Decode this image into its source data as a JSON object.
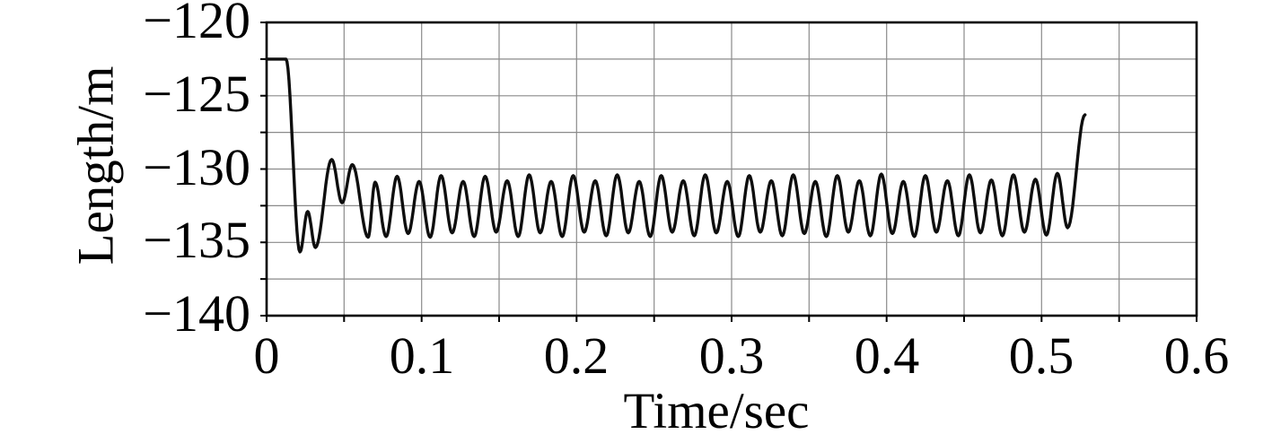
{
  "figure": {
    "background": "#ffffff",
    "line_color": "#0e0e0e",
    "grid_color": "#8a8a8a",
    "axis_color": "#000000"
  },
  "chart_data": {
    "type": "line",
    "title": "",
    "xlabel": "Time/sec",
    "ylabel": "Length/m",
    "xlim": [
      0,
      0.6
    ],
    "ylim": [
      -140,
      -120
    ],
    "x_minor_step": 0.05,
    "y_minor_step": 2.5,
    "grid": "minor-both",
    "legend": "none",
    "x_major_ticks": [
      0,
      0.1,
      0.2,
      0.3,
      0.4,
      0.5,
      0.6
    ],
    "x_tick_labels": [
      "0",
      "0.1",
      "0.2",
      "0.3",
      "0.4",
      "0.5",
      "0.6"
    ],
    "y_major_ticks": [
      -120,
      -125,
      -130,
      -135,
      -140
    ],
    "y_tick_labels": [
      "−120",
      "−125",
      "−130",
      "−135",
      "−140"
    ],
    "series": [
      {
        "name": "length",
        "points": [
          [
            0.0,
            -122.5
          ],
          [
            0.0125,
            -122.5
          ],
          [
            0.0215,
            -135.65
          ],
          [
            0.0265,
            -132.9
          ],
          [
            0.0315,
            -135.35
          ],
          [
            0.042,
            -129.35
          ],
          [
            0.0487,
            -132.3
          ],
          [
            0.0553,
            -129.7
          ],
          [
            0.0655,
            -134.65
          ],
          [
            0.07,
            -130.9
          ],
          [
            0.0771,
            -134.6
          ],
          [
            0.0842,
            -130.5
          ],
          [
            0.0913,
            -134.4
          ],
          [
            0.0984,
            -130.85
          ],
          [
            0.1055,
            -134.65
          ],
          [
            0.1126,
            -130.45
          ],
          [
            0.1197,
            -134.35
          ],
          [
            0.1268,
            -130.85
          ],
          [
            0.1339,
            -134.6
          ],
          [
            0.141,
            -130.5
          ],
          [
            0.1481,
            -134.3
          ],
          [
            0.1552,
            -130.8
          ],
          [
            0.1623,
            -134.6
          ],
          [
            0.1694,
            -130.4
          ],
          [
            0.1765,
            -134.35
          ],
          [
            0.1836,
            -130.85
          ],
          [
            0.1907,
            -134.6
          ],
          [
            0.1978,
            -130.45
          ],
          [
            0.2049,
            -134.3
          ],
          [
            0.212,
            -130.8
          ],
          [
            0.2191,
            -134.55
          ],
          [
            0.2262,
            -130.4
          ],
          [
            0.2333,
            -134.35
          ],
          [
            0.2404,
            -130.85
          ],
          [
            0.2475,
            -134.6
          ],
          [
            0.2546,
            -130.45
          ],
          [
            0.2617,
            -134.3
          ],
          [
            0.2688,
            -130.8
          ],
          [
            0.2759,
            -134.55
          ],
          [
            0.283,
            -130.4
          ],
          [
            0.2901,
            -134.35
          ],
          [
            0.2972,
            -130.85
          ],
          [
            0.3043,
            -134.6
          ],
          [
            0.3114,
            -130.45
          ],
          [
            0.3185,
            -134.3
          ],
          [
            0.3256,
            -130.8
          ],
          [
            0.3327,
            -134.55
          ],
          [
            0.3398,
            -130.4
          ],
          [
            0.3469,
            -134.4
          ],
          [
            0.354,
            -130.85
          ],
          [
            0.3611,
            -134.6
          ],
          [
            0.3682,
            -130.45
          ],
          [
            0.3753,
            -134.3
          ],
          [
            0.3824,
            -130.8
          ],
          [
            0.3895,
            -134.55
          ],
          [
            0.3966,
            -130.35
          ],
          [
            0.4037,
            -134.4
          ],
          [
            0.4108,
            -130.85
          ],
          [
            0.4179,
            -134.6
          ],
          [
            0.425,
            -130.45
          ],
          [
            0.4321,
            -134.3
          ],
          [
            0.4392,
            -130.8
          ],
          [
            0.4463,
            -134.55
          ],
          [
            0.4534,
            -130.4
          ],
          [
            0.4605,
            -134.35
          ],
          [
            0.4676,
            -130.75
          ],
          [
            0.4747,
            -134.55
          ],
          [
            0.4818,
            -130.4
          ],
          [
            0.4889,
            -134.3
          ],
          [
            0.496,
            -130.7
          ],
          [
            0.5031,
            -134.5
          ],
          [
            0.5102,
            -130.3
          ],
          [
            0.5168,
            -134.0
          ],
          [
            0.528,
            -126.3
          ]
        ]
      }
    ]
  }
}
